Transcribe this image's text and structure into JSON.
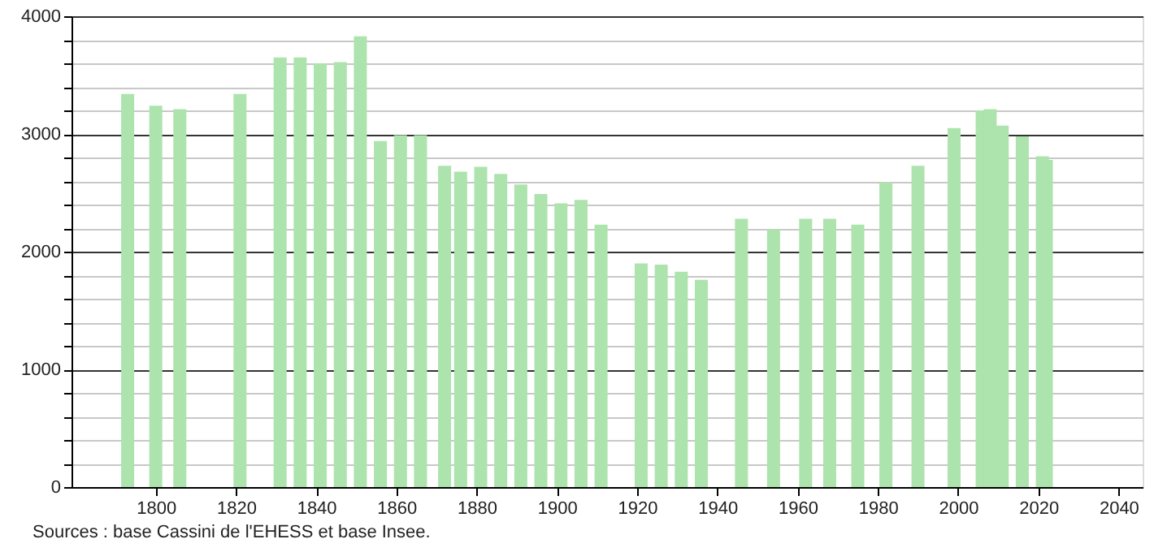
{
  "chart_data": {
    "type": "bar",
    "x": [
      1793,
      1800,
      1806,
      1821,
      1831,
      1836,
      1841,
      1846,
      1851,
      1856,
      1861,
      1866,
      1872,
      1876,
      1881,
      1886,
      1891,
      1896,
      1901,
      1906,
      1911,
      1921,
      1926,
      1931,
      1936,
      1946,
      1954,
      1962,
      1968,
      1975,
      1982,
      1990,
      1999,
      2006,
      2008,
      2011,
      2016,
      2021,
      2022
    ],
    "values": [
      3340,
      3240,
      3210,
      3340,
      3650,
      3650,
      3600,
      3610,
      3830,
      2940,
      2990,
      2990,
      2730,
      2680,
      2720,
      2660,
      2570,
      2490,
      2410,
      2440,
      2230,
      1900,
      1890,
      1830,
      1760,
      2280,
      2190,
      2280,
      2280,
      2230,
      2590,
      2730,
      3050,
      3200,
      3210,
      3070,
      2980,
      2810,
      2780
    ],
    "color": "#ade3ad",
    "xlim": [
      1779,
      2046
    ],
    "xticks": [
      1800,
      1820,
      1840,
      1860,
      1880,
      1900,
      1920,
      1940,
      1960,
      1980,
      2000,
      2020,
      2040
    ],
    "ylim": [
      0,
      4000
    ],
    "yticks": [
      0,
      {
        "value": 200,
        "label": null
      },
      {
        "value": 400,
        "label": null
      },
      {
        "value": 600,
        "label": null
      },
      {
        "value": 800,
        "label": null
      },
      1000,
      {
        "value": 1200,
        "label": null
      },
      {
        "value": 1400,
        "label": null
      },
      {
        "value": 1600,
        "label": null
      },
      {
        "value": 1800,
        "label": null
      },
      2000,
      {
        "value": 2200,
        "label": null
      },
      {
        "value": 2400,
        "label": null
      },
      {
        "value": 2600,
        "label": null
      },
      {
        "value": 2800,
        "label": null
      },
      3000,
      {
        "value": 3200,
        "label": null
      },
      {
        "value": 3400,
        "label": null
      },
      {
        "value": 3600,
        "label": null
      },
      {
        "value": 3800,
        "label": null
      },
      4000
    ],
    "grid": "y",
    "annotations": [
      "Sources : base Cassini de l'EHESS et base Insee."
    ]
  }
}
